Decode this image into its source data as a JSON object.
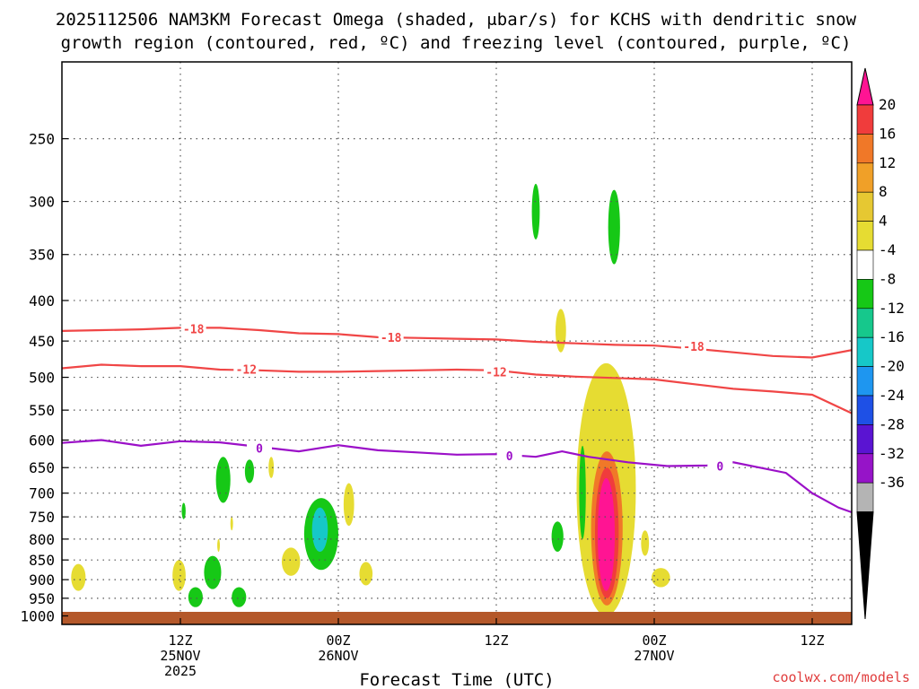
{
  "chart_data": {
    "type": "contour",
    "title_lines": [
      "2025112506 NAM3KM Forecast Omega (shaded, μbar/s) for KCHS with dendritic snow",
      "growth region (contoured, red, ºC) and freezing level (contoured, purple, ºC)"
    ],
    "xlabel": "Forecast Time (UTC)",
    "credit": "coolwx.com/models",
    "x_range_hours": [
      -3,
      57
    ],
    "x_ticks": [
      {
        "h": 6,
        "lines": [
          "12Z",
          "25NOV",
          "2025"
        ]
      },
      {
        "h": 18,
        "lines": [
          "00Z",
          "26NOV"
        ]
      },
      {
        "h": 30,
        "lines": [
          "12Z"
        ]
      },
      {
        "h": 42,
        "lines": [
          "00Z",
          "27NOV"
        ]
      },
      {
        "h": 54,
        "lines": [
          "12Z"
        ]
      }
    ],
    "y_scale": "log-pressure",
    "y_range_hpa": [
      200,
      1025
    ],
    "y_ticks": [
      250,
      300,
      350,
      400,
      450,
      500,
      550,
      600,
      650,
      700,
      750,
      800,
      850,
      900,
      950,
      1000
    ],
    "colorbar": {
      "labels": [
        "20",
        "16",
        "12",
        "8",
        "4",
        "-4",
        "-8",
        "-12",
        "-16",
        "-20",
        "-24",
        "-28",
        "-32",
        "-36"
      ],
      "top_color": "#ff1493",
      "colors": [
        "#f03c3c",
        "#f07828",
        "#f0a028",
        "#e6c832",
        "#e6dc32",
        "#ffffff",
        "#16c816",
        "#16c88c",
        "#16c8c8",
        "#1e96f0",
        "#1e50e6",
        "#5a14d2",
        "#9614c8",
        "#b4b4b4"
      ],
      "bottom_color": "#000000"
    },
    "contours": [
      {
        "name": "-18",
        "color": "#f04646",
        "points": [
          [
            -3,
            437
          ],
          [
            0,
            436
          ],
          [
            3,
            435
          ],
          [
            6,
            433
          ],
          [
            9,
            433
          ],
          [
            12,
            436
          ],
          [
            15,
            440
          ],
          [
            18,
            441
          ],
          [
            21,
            445
          ],
          [
            24,
            446
          ],
          [
            27,
            447
          ],
          [
            30,
            448
          ],
          [
            33,
            451
          ],
          [
            36,
            453
          ],
          [
            39,
            455
          ],
          [
            42,
            456
          ],
          [
            45,
            460
          ],
          [
            48,
            465
          ],
          [
            51,
            470
          ],
          [
            54,
            472
          ],
          [
            57,
            462
          ]
        ],
        "labels": [
          [
            7,
            434
          ],
          [
            22,
            445
          ],
          [
            45,
            457
          ]
        ]
      },
      {
        "name": "-12",
        "color": "#f04646",
        "points": [
          [
            -3,
            487
          ],
          [
            0,
            482
          ],
          [
            3,
            484
          ],
          [
            6,
            484
          ],
          [
            9,
            489
          ],
          [
            12,
            490
          ],
          [
            15,
            492
          ],
          [
            18,
            492
          ],
          [
            21,
            491
          ],
          [
            24,
            490
          ],
          [
            27,
            489
          ],
          [
            30,
            490
          ],
          [
            33,
            496
          ],
          [
            36,
            499
          ],
          [
            39,
            501
          ],
          [
            42,
            503
          ],
          [
            45,
            510
          ],
          [
            48,
            517
          ],
          [
            51,
            521
          ],
          [
            54,
            526
          ],
          [
            57,
            555
          ]
        ],
        "labels": [
          [
            11,
            488
          ],
          [
            30,
            492
          ]
        ]
      },
      {
        "name": "0",
        "color": "#9b10c8",
        "points": [
          [
            -3,
            605
          ],
          [
            0,
            600
          ],
          [
            3,
            610
          ],
          [
            6,
            602
          ],
          [
            9,
            604
          ],
          [
            12,
            612
          ],
          [
            15,
            620
          ],
          [
            18,
            609
          ],
          [
            21,
            618
          ],
          [
            24,
            622
          ],
          [
            27,
            626
          ],
          [
            30,
            625
          ],
          [
            33,
            630
          ],
          [
            35,
            620
          ],
          [
            37,
            630
          ],
          [
            40,
            640
          ],
          [
            43,
            647
          ],
          [
            46,
            646
          ],
          [
            48,
            640
          ],
          [
            50,
            650
          ],
          [
            52,
            660
          ],
          [
            54,
            700
          ],
          [
            56,
            730
          ],
          [
            57,
            740
          ]
        ],
        "labels": [
          [
            12,
            614
          ],
          [
            31,
            628
          ],
          [
            47,
            647
          ]
        ]
      }
    ],
    "omega_features": [
      {
        "x": [
          36.1,
          40.6
        ],
        "y": [
          480,
          1000
        ],
        "color": "#e6dc32"
      },
      {
        "x": [
          37.2,
          39.6
        ],
        "y": [
          620,
          970
        ],
        "color": "#f07828"
      },
      {
        "x": [
          37.5,
          39.3
        ],
        "y": [
          650,
          950
        ],
        "color": "#f03c3c"
      },
      {
        "x": [
          37.7,
          39.0
        ],
        "y": [
          670,
          930
        ],
        "color": "#ff1493"
      },
      {
        "x": [
          36.3,
          36.8
        ],
        "y": [
          610,
          800
        ],
        "color": "#16c816"
      },
      {
        "x": [
          34.2,
          35.1
        ],
        "y": [
          760,
          830
        ],
        "color": "#16c816"
      },
      {
        "x": [
          41.0,
          41.6
        ],
        "y": [
          780,
          840
        ],
        "color": "#e6dc32"
      },
      {
        "x": [
          34.5,
          35.3
        ],
        "y": [
          410,
          465
        ],
        "color": "#e6dc32"
      },
      {
        "x": [
          41.8,
          43.2
        ],
        "y": [
          870,
          920
        ],
        "color": "#e6dc32"
      },
      {
        "x": [
          38.5,
          39.4
        ],
        "y": [
          290,
          360
        ],
        "color": "#16c816"
      },
      {
        "x": [
          32.7,
          33.3
        ],
        "y": [
          285,
          335
        ],
        "color": "#16c816"
      },
      {
        "x": [
          15.4,
          18.0
        ],
        "y": [
          710,
          875
        ],
        "color": "#16c816"
      },
      {
        "x": [
          16.0,
          17.2
        ],
        "y": [
          730,
          830
        ],
        "color": "#16c8c8"
      },
      {
        "x": [
          18.4,
          19.2
        ],
        "y": [
          680,
          770
        ],
        "color": "#e6dc32"
      },
      {
        "x": [
          13.7,
          15.1
        ],
        "y": [
          820,
          890
        ],
        "color": "#e6dc32"
      },
      {
        "x": [
          8.7,
          9.8
        ],
        "y": [
          630,
          720
        ],
        "color": "#16c816"
      },
      {
        "x": [
          10.9,
          11.6
        ],
        "y": [
          635,
          680
        ],
        "color": "#16c816"
      },
      {
        "x": [
          12.7,
          13.1
        ],
        "y": [
          630,
          670
        ],
        "color": "#e6dc32"
      },
      {
        "x": [
          7.8,
          9.1
        ],
        "y": [
          840,
          925
        ],
        "color": "#16c816"
      },
      {
        "x": [
          6.6,
          7.7
        ],
        "y": [
          920,
          975
        ],
        "color": "#16c816"
      },
      {
        "x": [
          5.4,
          6.4
        ],
        "y": [
          850,
          930
        ],
        "color": "#e6dc32"
      },
      {
        "x": [
          6.1,
          6.4
        ],
        "y": [
          720,
          755
        ],
        "color": "#16c816"
      },
      {
        "x": [
          9.9,
          11.0
        ],
        "y": [
          920,
          975
        ],
        "color": "#16c816"
      },
      {
        "x": [
          19.6,
          20.6
        ],
        "y": [
          855,
          915
        ],
        "color": "#e6dc32"
      },
      {
        "x": [
          -2.3,
          -1.2
        ],
        "y": [
          860,
          930
        ],
        "color": "#e6dc32"
      },
      {
        "x": [
          9.8,
          10.0
        ],
        "y": [
          750,
          780
        ],
        "color": "#e6dc32"
      },
      {
        "x": [
          8.8,
          9.0
        ],
        "y": [
          800,
          830
        ],
        "color": "#e6dc32"
      }
    ],
    "terrain_color": "#b4582a",
    "grid": "dotted"
  }
}
